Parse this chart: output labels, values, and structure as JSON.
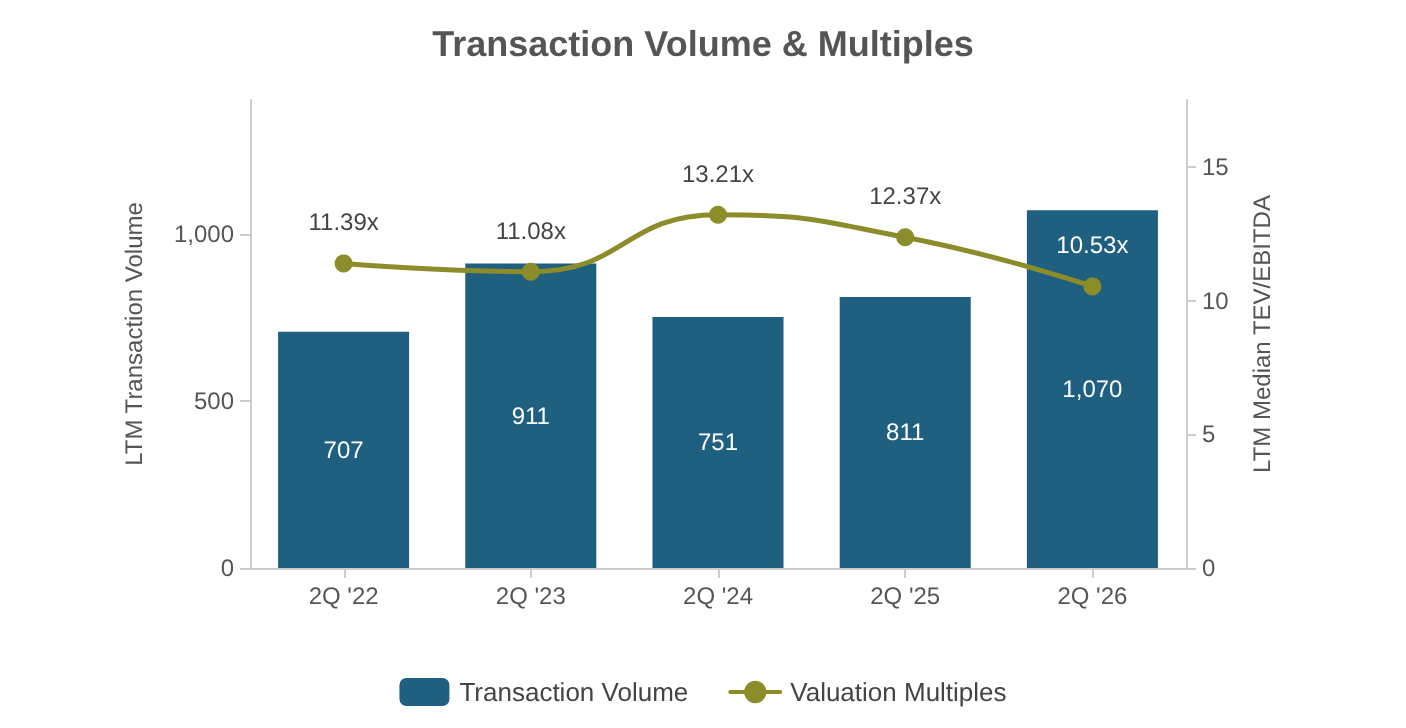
{
  "chart_data": {
    "type": "bar",
    "title": "Transaction Volume & Multiples",
    "categories": [
      "2Q '22",
      "2Q '23",
      "2Q '24",
      "2Q '25",
      "2Q '26"
    ],
    "series": [
      {
        "name": "Transaction Volume",
        "color": "#1f5f80",
        "values": [
          707,
          911,
          751,
          811,
          1070
        ],
        "value_labels": [
          "707",
          "911",
          "751",
          "811",
          "1,070"
        ]
      },
      {
        "name": "Valuation Multiples",
        "type": "line",
        "axis": "y2",
        "color": "#8c8c2a",
        "values": [
          11.39,
          11.08,
          13.21,
          12.37,
          10.53
        ],
        "value_labels": [
          "11.39x",
          "11.08x",
          "13.21x",
          "12.37x",
          "10.53x"
        ]
      }
    ],
    "ylabel": "LTM Transaction Volume",
    "y2label": "LTM Median TEV/EBITDA",
    "ylim": [
      0,
      1400
    ],
    "yticks": [
      0,
      500,
      {
        "value": 1000,
        "label": "1,000"
      }
    ],
    "y2lim": [
      0,
      17.5
    ],
    "y2ticks": [
      0,
      5,
      10,
      15
    ],
    "grid": false,
    "legend": "bottom",
    "marker": "circle",
    "line_style": "solid"
  }
}
